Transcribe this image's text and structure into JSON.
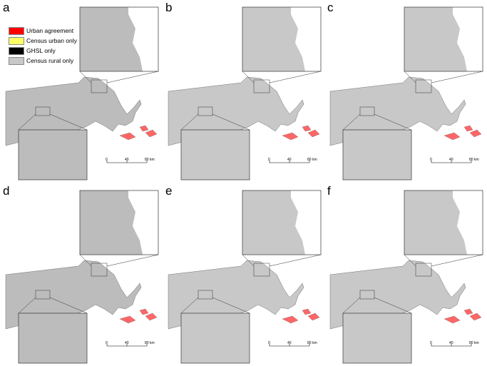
{
  "panels": [
    {
      "letter": "a",
      "style": "ghsl"
    },
    {
      "letter": "b",
      "style": "census"
    },
    {
      "letter": "c",
      "style": "census-light"
    },
    {
      "letter": "d",
      "style": "ghsl"
    },
    {
      "letter": "e",
      "style": "census"
    },
    {
      "letter": "f",
      "style": "census-light"
    }
  ],
  "legend": [
    {
      "label": "Urban agreement",
      "color": "#ff0000"
    },
    {
      "label": "Census urban only",
      "color": "#ffff66"
    },
    {
      "label": "GHSL only",
      "color": "#000000"
    },
    {
      "label": "Census rural only",
      "color": "#c8c8c8"
    }
  ],
  "scale_labels": {
    "zero": "0",
    "mid": "40",
    "end": "80 km"
  }
}
